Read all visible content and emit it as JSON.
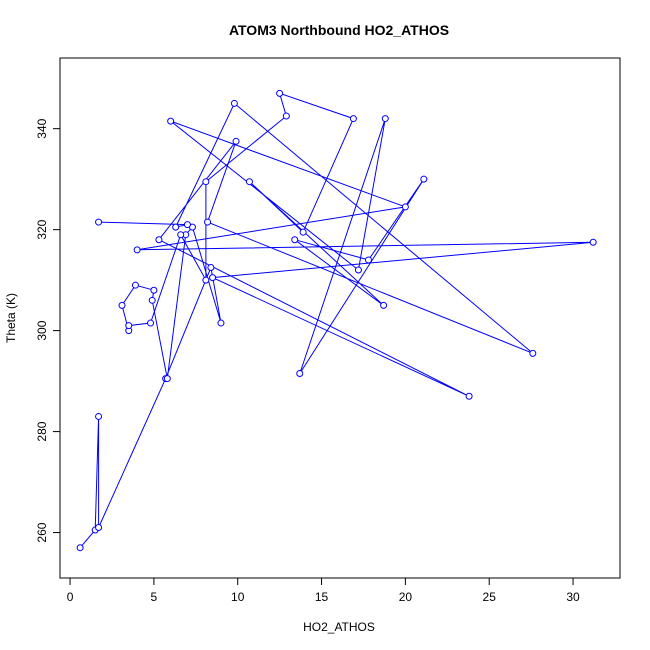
{
  "chart_data": {
    "type": "line",
    "title": "ATOM3 Northbound HO2_ATHOS",
    "xlabel": "HO2_ATHOS",
    "ylabel": "Theta (K)",
    "xlim": [
      -0.6,
      32.8
    ],
    "ylim": [
      251,
      354
    ],
    "xticks": [
      0,
      5,
      10,
      15,
      20,
      25,
      30
    ],
    "yticks": [
      260,
      280,
      300,
      320,
      340
    ],
    "grid": false,
    "series": [
      {
        "color": "#0000ff",
        "marker": "open-circle",
        "x": [
          0.6,
          1.5,
          1.7,
          1.7,
          5.7,
          8.4,
          9.0,
          7.3,
          6.9,
          5.8,
          4.9,
          5.0,
          3.9,
          3.1,
          3.5,
          3.5,
          4.8,
          6.6,
          8.1,
          8.1,
          12.9,
          12.5,
          16.9,
          13.9,
          10.7,
          18.7,
          13.4,
          17.8,
          21.1,
          13.7,
          18.8,
          17.2,
          6.0,
          20.0,
          4.0,
          31.2,
          8.5,
          23.8,
          5.3,
          9.9,
          8.2,
          27.6,
          9.8,
          6.3,
          7.0,
          1.7
        ],
        "y": [
          257,
          260.5,
          283,
          261,
          290.5,
          312.5,
          301.5,
          320.5,
          319,
          290.5,
          306,
          308,
          309,
          305,
          300,
          301,
          301.5,
          319,
          310,
          329.5,
          342.5,
          347,
          342,
          319.5,
          329.5,
          305,
          318,
          314,
          330,
          291.5,
          342,
          312,
          341.5,
          324.5,
          316,
          317.5,
          310.5,
          287,
          318,
          337.5,
          321.5,
          295.5,
          345,
          320.5,
          321,
          321.5
        ]
      }
    ]
  }
}
